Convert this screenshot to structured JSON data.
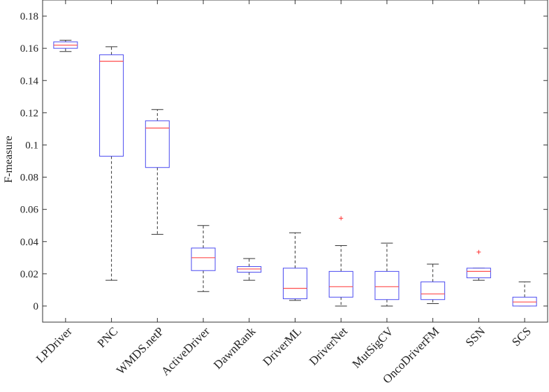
{
  "chart_data": {
    "type": "box",
    "title": "",
    "xlabel": "",
    "ylabel": "F-measure",
    "ylim": [
      -0.01,
      0.19
    ],
    "yticks": [
      0,
      0.02,
      0.04,
      0.06,
      0.08,
      0.1,
      0.12,
      0.14,
      0.16,
      0.18
    ],
    "ytick_labels": [
      "0",
      "0.02",
      "0.04",
      "0.06",
      "0.08",
      "0.1",
      "0.12",
      "0.14",
      "0.16",
      "0.18"
    ],
    "grid": false,
    "colors": {
      "box": "#4a4af0",
      "median": "#ff4d4d",
      "whisker": "#333333",
      "outlier": "#ff3333"
    },
    "categories": [
      "LPDriver",
      "PNC",
      "WMDS.netP",
      "ActiveDriver",
      "DawnRank",
      "DriverML",
      "DriverNet",
      "MutSigCV",
      "OncoDriverFM",
      "SSN",
      "SCS"
    ],
    "boxes": [
      {
        "min": 0.158,
        "q1": 0.16,
        "median": 0.162,
        "q3": 0.164,
        "max": 0.165,
        "outliers": []
      },
      {
        "min": 0.016,
        "q1": 0.093,
        "median": 0.152,
        "q3": 0.156,
        "max": 0.161,
        "outliers": []
      },
      {
        "min": 0.0445,
        "q1": 0.086,
        "median": 0.1105,
        "q3": 0.115,
        "max": 0.122,
        "outliers": []
      },
      {
        "min": 0.009,
        "q1": 0.022,
        "median": 0.03,
        "q3": 0.036,
        "max": 0.05,
        "outliers": []
      },
      {
        "min": 0.016,
        "q1": 0.021,
        "median": 0.023,
        "q3": 0.0245,
        "max": 0.0295,
        "outliers": []
      },
      {
        "min": 0.0035,
        "q1": 0.0045,
        "median": 0.011,
        "q3": 0.0235,
        "max": 0.0455,
        "outliers": []
      },
      {
        "min": 0.0,
        "q1": 0.0055,
        "median": 0.012,
        "q3": 0.0215,
        "max": 0.0375,
        "outliers": [
          0.0545
        ]
      },
      {
        "min": 0.0,
        "q1": 0.004,
        "median": 0.012,
        "q3": 0.0215,
        "max": 0.039,
        "outliers": []
      },
      {
        "min": 0.0015,
        "q1": 0.004,
        "median": 0.0075,
        "q3": 0.015,
        "max": 0.026,
        "outliers": []
      },
      {
        "min": 0.016,
        "q1": 0.0175,
        "median": 0.0215,
        "q3": 0.0235,
        "max": 0.0235,
        "outliers": [
          0.0335
        ]
      },
      {
        "min": 0.0,
        "q1": 0.0,
        "median": 0.0025,
        "q3": 0.0055,
        "max": 0.015,
        "outliers": []
      }
    ]
  }
}
